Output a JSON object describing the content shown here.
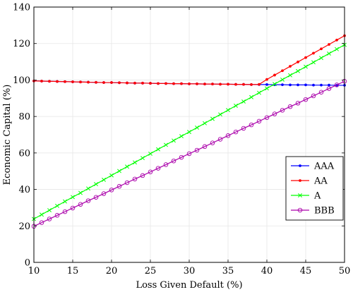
{
  "chart_data": {
    "type": "line",
    "xlabel": "Loss Given Default (%)",
    "ylabel": "Economic Capital (%)",
    "xlim": [
      10,
      50
    ],
    "ylim": [
      0,
      140
    ],
    "xticks": [
      10,
      15,
      20,
      25,
      30,
      35,
      40,
      45,
      50
    ],
    "yticks": [
      0,
      20,
      40,
      60,
      80,
      100,
      120,
      140
    ],
    "grid": true,
    "legend_position": "lower-right",
    "x": [
      10,
      11,
      12,
      13,
      14,
      15,
      16,
      17,
      18,
      19,
      20,
      21,
      22,
      23,
      24,
      25,
      26,
      27,
      28,
      29,
      30,
      31,
      32,
      33,
      34,
      35,
      36,
      37,
      38,
      39,
      40,
      41,
      42,
      43,
      44,
      45,
      46,
      47,
      48,
      49,
      50
    ],
    "series": [
      {
        "name": "AAA",
        "color": "#0000ff",
        "marker": "dot",
        "values": [
          99.5,
          99.4,
          99.3,
          99.2,
          99.1,
          99.0,
          98.9,
          98.8,
          98.7,
          98.6,
          98.6,
          98.5,
          98.4,
          98.3,
          98.3,
          98.2,
          98.1,
          98.1,
          98.0,
          98.0,
          97.9,
          97.9,
          97.8,
          97.8,
          97.7,
          97.7,
          97.6,
          97.6,
          97.5,
          97.5,
          97.5,
          97.4,
          97.4,
          97.3,
          97.3,
          97.3,
          97.2,
          97.2,
          97.2,
          97.1,
          97.1
        ]
      },
      {
        "name": "AA",
        "color": "#ff0000",
        "marker": "dot",
        "values": [
          99.5,
          99.4,
          99.3,
          99.2,
          99.1,
          99.0,
          98.9,
          98.8,
          98.7,
          98.6,
          98.6,
          98.5,
          98.4,
          98.3,
          98.3,
          98.2,
          98.1,
          98.1,
          98.0,
          98.0,
          97.9,
          97.9,
          97.8,
          97.8,
          97.7,
          97.7,
          97.6,
          97.6,
          97.5,
          97.6,
          100.3,
          102.7,
          105.1,
          107.5,
          109.9,
          112.3,
          114.7,
          117.1,
          119.5,
          121.9,
          124.3
        ]
      },
      {
        "name": "A",
        "color": "#00ff00",
        "marker": "x",
        "values": [
          23.8,
          26.2,
          28.6,
          31.0,
          33.4,
          35.8,
          38.1,
          40.5,
          42.9,
          45.3,
          47.7,
          50.1,
          52.5,
          54.8,
          57.2,
          59.6,
          62.0,
          64.4,
          66.8,
          69.2,
          71.5,
          73.9,
          76.3,
          78.7,
          81.1,
          83.5,
          85.9,
          88.2,
          90.6,
          93.0,
          95.4,
          97.8,
          100.2,
          102.6,
          104.9,
          107.3,
          109.7,
          112.1,
          114.5,
          116.9,
          119.3
        ]
      },
      {
        "name": "BBB",
        "color": "#aa00aa",
        "marker": "circle",
        "values": [
          19.8,
          21.8,
          23.8,
          25.8,
          27.8,
          29.8,
          31.8,
          33.8,
          35.7,
          37.7,
          39.7,
          41.7,
          43.7,
          45.7,
          47.6,
          49.6,
          51.6,
          53.6,
          55.6,
          57.6,
          59.6,
          61.5,
          63.5,
          65.5,
          67.5,
          69.5,
          71.5,
          73.5,
          75.4,
          77.4,
          79.4,
          81.4,
          83.4,
          85.4,
          87.3,
          89.3,
          91.3,
          93.3,
          95.3,
          97.3,
          99.3
        ]
      }
    ]
  }
}
